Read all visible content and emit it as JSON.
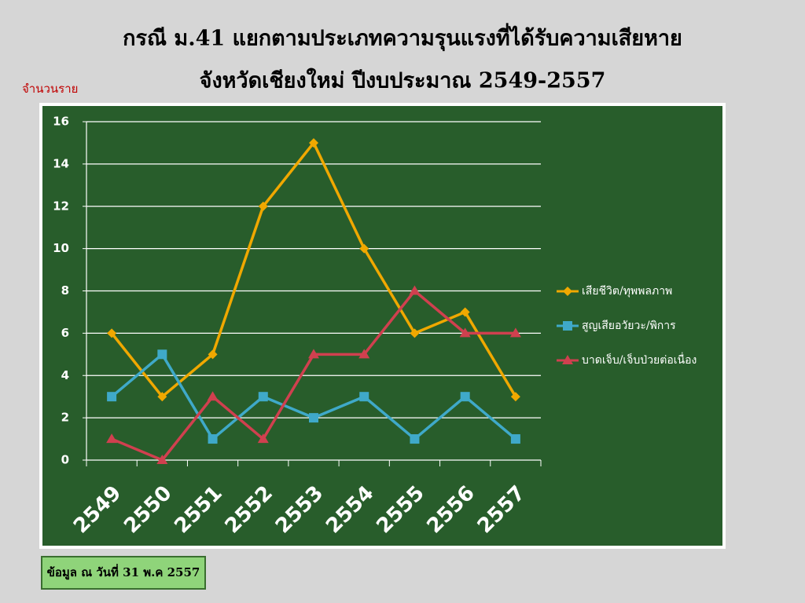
{
  "chart_data": {
    "type": "line",
    "title": "กรณี ม.41 แยกตามประเภทความรุนแรงที่ได้รับความเสียหาย",
    "subtitle": "จังหวัดเชียงใหม่  ปีงบประมาณ 2549-2557",
    "y_label": "จำนวนราย",
    "note": "ข้อมูล ณ วันที่ 31 พ.ค 2557",
    "categories": [
      "2549",
      "2550",
      "2551",
      "2552",
      "2553",
      "2554",
      "2555",
      "2556",
      "2557"
    ],
    "series": [
      {
        "name": "เสียชีวิต/ทุพพลภาพ",
        "color": "#f0a800",
        "marker": "diamond",
        "values": [
          6,
          3,
          5,
          12,
          15,
          10,
          6,
          7,
          3
        ]
      },
      {
        "name": "สูญเสียอวัยวะ/พิการ",
        "color": "#3fa9c9",
        "marker": "square",
        "values": [
          3,
          5,
          1,
          3,
          2,
          3,
          1,
          3,
          1
        ]
      },
      {
        "name": "บาดเจ็บ/เจ็บป่วยต่อเนื่อง",
        "color": "#d0404f",
        "marker": "triangle",
        "values": [
          1,
          0,
          3,
          1,
          5,
          5,
          8,
          6,
          6
        ]
      }
    ],
    "ylim": [
      0,
      16
    ],
    "yticks": [
      0,
      2,
      4,
      6,
      8,
      10,
      12,
      14,
      16
    ],
    "grid": true,
    "legend": "right"
  }
}
